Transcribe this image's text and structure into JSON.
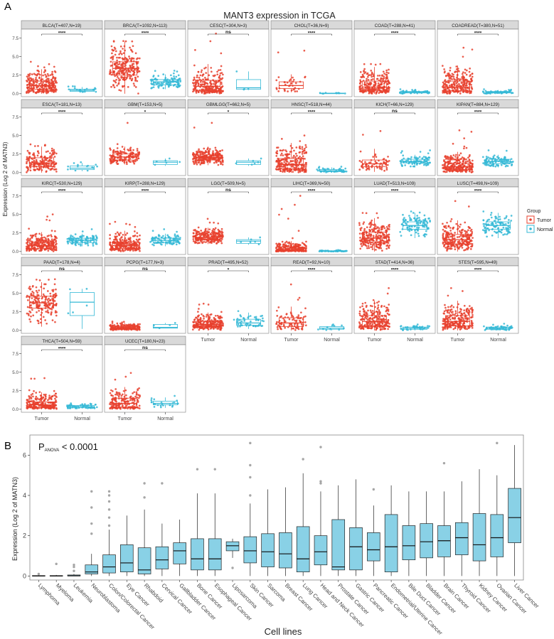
{
  "chart_data": [
    {
      "type": "boxplot",
      "panel_label": "A",
      "title": "MANT3 expression in TCGA",
      "ylabel": "Expression (Log 2 of MATN3)",
      "ylim": [
        -0.4,
        8.7
      ],
      "yticks": [
        "0.0",
        "2.5",
        "5.0",
        "7.5"
      ],
      "groups": [
        "Tumor",
        "Normal"
      ],
      "legend": {
        "title": "Group",
        "items": [
          "Tumor",
          "Normal"
        ],
        "position": "right"
      },
      "colors": {
        "tumor": "#e8412e",
        "normal": "#35b9d6",
        "strip": "#d9d9d9",
        "panel_border": "#7f7f7f"
      },
      "panels": [
        {
          "label": "BLCA(T=407,N=19)",
          "sig": "****",
          "tumor": {
            "q1": 0.6,
            "med": 1.1,
            "q3": 1.7,
            "lo": 0.0,
            "hi": 3.3,
            "max": 4.3
          },
          "normal": {
            "q1": 0.3,
            "med": 0.45,
            "q3": 0.6,
            "lo": 0.1,
            "hi": 0.9,
            "max": 1.0
          }
        },
        {
          "label": "BRCA(T=1092,N=113)",
          "sig": "****",
          "tumor": {
            "q1": 2.5,
            "med": 3.4,
            "q3": 4.3,
            "lo": 0.0,
            "hi": 7.0,
            "max": 7.1
          },
          "normal": {
            "q1": 1.2,
            "med": 1.6,
            "q3": 1.9,
            "lo": 0.6,
            "hi": 2.6,
            "max": 3.1
          }
        },
        {
          "label": "CESC(T=304,N=3)",
          "sig": "ns",
          "tumor": {
            "q1": 0.4,
            "med": 1.0,
            "q3": 1.8,
            "lo": 0.0,
            "hi": 4.0,
            "max": 8.1
          },
          "normal": {
            "q1": 0.6,
            "med": 0.8,
            "q3": 1.9,
            "lo": 0.5,
            "hi": 3.0,
            "max": 3.0
          }
        },
        {
          "label": "CHOL(T=36,N=9)",
          "sig": "****",
          "tumor": {
            "q1": 0.7,
            "med": 1.1,
            "q3": 1.6,
            "lo": 0.2,
            "hi": 2.6,
            "max": 5.8
          },
          "normal": {
            "q1": 0.02,
            "med": 0.05,
            "q3": 0.08,
            "lo": 0.0,
            "hi": 0.12,
            "max": 0.12
          }
        },
        {
          "label": "COAD(T=288,N=41)",
          "sig": "****",
          "tumor": {
            "q1": 0.4,
            "med": 0.9,
            "q3": 1.7,
            "lo": 0.0,
            "hi": 3.6,
            "max": 4.0
          },
          "normal": {
            "q1": 0.1,
            "med": 0.2,
            "q3": 0.3,
            "lo": 0.0,
            "hi": 0.5,
            "max": 0.6
          }
        },
        {
          "label": "COADREAD(T=380,N=51)",
          "sig": "****",
          "tumor": {
            "q1": 0.4,
            "med": 0.9,
            "q3": 1.7,
            "lo": 0.0,
            "hi": 3.8,
            "max": 6.2
          },
          "normal": {
            "q1": 0.1,
            "med": 0.2,
            "q3": 0.3,
            "lo": 0.0,
            "hi": 0.5,
            "max": 0.6
          }
        },
        {
          "label": "ESCA(T=181,N=13)",
          "sig": "****",
          "tumor": {
            "q1": 0.8,
            "med": 1.3,
            "q3": 2.0,
            "lo": 0.0,
            "hi": 3.5,
            "max": 3.8
          },
          "normal": {
            "q1": 0.4,
            "med": 0.6,
            "q3": 0.9,
            "lo": 0.2,
            "hi": 1.3,
            "max": 1.4
          }
        },
        {
          "label": "GBM(T=153,N=5)",
          "sig": "*",
          "tumor": {
            "q1": 1.7,
            "med": 2.1,
            "q3": 2.5,
            "lo": 1.1,
            "hi": 3.5,
            "max": 6.7
          },
          "normal": {
            "q1": 1.1,
            "med": 1.4,
            "q3": 1.6,
            "lo": 0.9,
            "hi": 1.9,
            "max": 1.9
          }
        },
        {
          "label": "GBMLGG(T=662,N=5)",
          "sig": "*",
          "tumor": {
            "q1": 1.7,
            "med": 2.0,
            "q3": 2.4,
            "lo": 1.0,
            "hi": 3.5,
            "max": 6.7
          },
          "normal": {
            "q1": 1.1,
            "med": 1.4,
            "q3": 1.6,
            "lo": 0.9,
            "hi": 1.9,
            "max": 1.9
          }
        },
        {
          "label": "HNSC(T=518,N=44)",
          "sig": "****",
          "tumor": {
            "q1": 0.5,
            "med": 1.1,
            "q3": 1.9,
            "lo": 0.0,
            "hi": 4.0,
            "max": 5.0
          },
          "normal": {
            "q1": 0.15,
            "med": 0.25,
            "q3": 0.4,
            "lo": 0.0,
            "hi": 0.7,
            "max": 0.8
          }
        },
        {
          "label": "KICH(T=66,N=129)",
          "sig": "ns",
          "tumor": {
            "q1": 0.8,
            "med": 1.2,
            "q3": 1.7,
            "lo": 0.1,
            "hi": 3.2,
            "max": 5.6
          },
          "normal": {
            "q1": 1.3,
            "med": 1.5,
            "q3": 1.8,
            "lo": 0.7,
            "hi": 2.4,
            "max": 3.0
          }
        },
        {
          "label": "KIPAN(T=884,N=129)",
          "sig": "****",
          "tumor": {
            "q1": 0.4,
            "med": 0.8,
            "q3": 1.3,
            "lo": 0.0,
            "hi": 2.8,
            "max": 5.7
          },
          "normal": {
            "q1": 1.2,
            "med": 1.5,
            "q3": 1.8,
            "lo": 0.7,
            "hi": 2.4,
            "max": 3.0
          }
        },
        {
          "label": "KIRC(T=530,N=129)",
          "sig": "****",
          "tumor": {
            "q1": 0.4,
            "med": 0.8,
            "q3": 1.3,
            "lo": 0.0,
            "hi": 2.6,
            "max": 5.0
          },
          "normal": {
            "q1": 1.2,
            "med": 1.5,
            "q3": 1.8,
            "lo": 0.7,
            "hi": 2.4,
            "max": 3.0
          }
        },
        {
          "label": "KIRP(T=288,N=129)",
          "sig": "****",
          "tumor": {
            "q1": 0.4,
            "med": 0.8,
            "q3": 1.3,
            "lo": 0.0,
            "hi": 2.8,
            "max": 4.0
          },
          "normal": {
            "q1": 1.2,
            "med": 1.5,
            "q3": 1.8,
            "lo": 0.7,
            "hi": 2.4,
            "max": 3.0
          }
        },
        {
          "label": "LGG(T=509,N=5)",
          "sig": "ns",
          "tumor": {
            "q1": 1.6,
            "med": 1.9,
            "q3": 2.3,
            "lo": 1.0,
            "hi": 3.2,
            "max": 4.4
          },
          "normal": {
            "q1": 1.1,
            "med": 1.4,
            "q3": 1.6,
            "lo": 0.9,
            "hi": 1.9,
            "max": 1.9
          }
        },
        {
          "label": "LIHC(T=369,N=50)",
          "sig": "****",
          "tumor": {
            "q1": 0.1,
            "med": 0.25,
            "q3": 0.6,
            "lo": 0.0,
            "hi": 1.4,
            "max": 7.5
          },
          "normal": {
            "q1": 0.03,
            "med": 0.06,
            "q3": 0.1,
            "lo": 0.0,
            "hi": 0.15,
            "max": 0.2
          }
        },
        {
          "label": "LUAD(T=513,N=109)",
          "sig": "****",
          "tumor": {
            "q1": 1.2,
            "med": 1.8,
            "q3": 2.6,
            "lo": 0.0,
            "hi": 4.5,
            "max": 5.2
          },
          "normal": {
            "q1": 3.0,
            "med": 3.5,
            "q3": 4.0,
            "lo": 1.8,
            "hi": 5.2,
            "max": 5.4
          }
        },
        {
          "label": "LUSC(T=498,N=109)",
          "sig": "****",
          "tumor": {
            "q1": 1.0,
            "med": 1.6,
            "q3": 2.3,
            "lo": 0.0,
            "hi": 4.2,
            "max": 6.8
          },
          "normal": {
            "q1": 3.0,
            "med": 3.5,
            "q3": 4.0,
            "lo": 1.8,
            "hi": 5.2,
            "max": 5.4
          }
        },
        {
          "label": "PAAD(T=178,N=4)",
          "sig": "ns",
          "tumor": {
            "q1": 3.0,
            "med": 3.7,
            "q3": 4.6,
            "lo": 0.5,
            "hi": 6.5,
            "max": 6.9
          },
          "normal": {
            "q1": 2.0,
            "med": 3.8,
            "q3": 5.1,
            "lo": 0.2,
            "hi": 5.6,
            "max": 5.6
          }
        },
        {
          "label": "PCPG(T=177,N=3)",
          "sig": "ns",
          "tumor": {
            "q1": 0.2,
            "med": 0.35,
            "q3": 0.55,
            "lo": 0.0,
            "hi": 1.0,
            "max": 1.2
          },
          "normal": {
            "q1": 0.3,
            "med": 0.4,
            "q3": 0.8,
            "lo": 0.3,
            "hi": 1.0,
            "max": 1.0
          }
        },
        {
          "label": "PRAD(T=495,N=52)",
          "sig": "*",
          "tumor": {
            "q1": 0.5,
            "med": 0.8,
            "q3": 1.2,
            "lo": 0.0,
            "hi": 2.4,
            "max": 3.6
          },
          "normal": {
            "q1": 0.7,
            "med": 1.0,
            "q3": 1.5,
            "lo": 0.2,
            "hi": 2.4,
            "max": 2.6
          }
        },
        {
          "label": "READ(T=92,N=10)",
          "sig": "****",
          "tumor": {
            "q1": 0.5,
            "med": 1.0,
            "q3": 1.7,
            "lo": 0.0,
            "hi": 3.2,
            "max": 6.2
          },
          "normal": {
            "q1": 0.15,
            "med": 0.3,
            "q3": 0.5,
            "lo": 0.0,
            "hi": 0.8,
            "max": 0.8
          }
        },
        {
          "label": "STAD(T=414,N=36)",
          "sig": "****",
          "tumor": {
            "q1": 0.6,
            "med": 1.2,
            "q3": 2.0,
            "lo": 0.0,
            "hi": 4.0,
            "max": 5.7
          },
          "normal": {
            "q1": 0.15,
            "med": 0.3,
            "q3": 0.45,
            "lo": 0.0,
            "hi": 0.7,
            "max": 0.8
          }
        },
        {
          "label": "STES(T=595,N=49)",
          "sig": "****",
          "tumor": {
            "q1": 0.6,
            "med": 1.2,
            "q3": 2.0,
            "lo": 0.0,
            "hi": 4.0,
            "max": 5.7
          },
          "normal": {
            "q1": 0.15,
            "med": 0.3,
            "q3": 0.45,
            "lo": 0.0,
            "hi": 0.7,
            "max": 0.9
          }
        },
        {
          "label": "THCA(T=504,N=59)",
          "sig": "****",
          "tumor": {
            "q1": 0.3,
            "med": 0.6,
            "q3": 1.0,
            "lo": 0.0,
            "hi": 2.3,
            "max": 4.2
          },
          "normal": {
            "q1": 0.2,
            "med": 0.35,
            "q3": 0.5,
            "lo": 0.1,
            "hi": 0.8,
            "max": 0.8
          }
        },
        {
          "label": "UCEC(T=180,N=23)",
          "sig": "ns",
          "tumor": {
            "q1": 0.3,
            "med": 0.8,
            "q3": 1.5,
            "lo": 0.0,
            "hi": 3.0,
            "max": 4.9
          },
          "normal": {
            "q1": 0.6,
            "med": 0.8,
            "q3": 1.1,
            "lo": 0.2,
            "hi": 1.6,
            "max": 1.8
          }
        }
      ]
    },
    {
      "type": "boxplot",
      "panel_label": "B",
      "annotation_main": "P",
      "annotation_sub": "ANOVA",
      "annotation_rest": " < 0.0001",
      "ylabel": "Expression (Log 2 of MATN3)",
      "xlabel": "Cell lines",
      "ylim": [
        -0.2,
        7.0
      ],
      "yticks": [
        "0",
        "2",
        "4",
        "6"
      ],
      "colors": {
        "box": "#89d1e6",
        "outlier": "#a6a6a6"
      },
      "categories": [
        {
          "name": "Lymphoma",
          "q1": 0.0,
          "med": 0.0,
          "q3": 0.02,
          "lo": 0.0,
          "hi": 0.05,
          "out": [
            0.1
          ]
        },
        {
          "name": "Myeloma",
          "q1": 0.0,
          "med": 0.0,
          "q3": 0.02,
          "lo": 0.0,
          "hi": 0.05,
          "out": [
            0.6
          ]
        },
        {
          "name": "Leukemia",
          "q1": 0.0,
          "med": 0.01,
          "q3": 0.05,
          "lo": 0.0,
          "hi": 0.1,
          "out": [
            0.25,
            0.45,
            0.55
          ]
        },
        {
          "name": "Neuroblastoma",
          "q1": 0.1,
          "med": 0.2,
          "q3": 0.55,
          "lo": 0.0,
          "hi": 1.1,
          "out": [
            2.1,
            2.6,
            3.4,
            4.2
          ]
        },
        {
          "name": "Colon/Colorectal Cancer",
          "q1": 0.15,
          "med": 0.45,
          "q3": 1.05,
          "lo": 0.0,
          "hi": 2.3,
          "out": [
            2.5,
            2.9,
            3.3,
            3.7,
            4.0,
            4.2
          ]
        },
        {
          "name": "Eye Cancer",
          "q1": 0.2,
          "med": 0.65,
          "q3": 1.55,
          "lo": 0.0,
          "hi": 3.0,
          "out": []
        },
        {
          "name": "Rhabdoid",
          "q1": 0.1,
          "med": 0.3,
          "q3": 1.4,
          "lo": 0.0,
          "hi": 3.3,
          "out": [
            3.9,
            4.6
          ]
        },
        {
          "name": "Cervical Cancer",
          "q1": 0.35,
          "med": 0.8,
          "q3": 1.45,
          "lo": 0.0,
          "hi": 2.6,
          "out": [
            4.6
          ]
        },
        {
          "name": "Gallbladder Cancer",
          "q1": 0.6,
          "med": 1.25,
          "q3": 1.65,
          "lo": 0.0,
          "hi": 2.8,
          "out": []
        },
        {
          "name": "Bone Cancer",
          "q1": 0.3,
          "med": 0.85,
          "q3": 1.85,
          "lo": 0.0,
          "hi": 4.1,
          "out": [
            5.3
          ]
        },
        {
          "name": "Esophageal Cancer",
          "q1": 0.3,
          "med": 0.85,
          "q3": 1.85,
          "lo": 0.0,
          "hi": 4.1,
          "out": [
            5.3
          ]
        },
        {
          "name": "Liposarcoma",
          "q1": 1.25,
          "med": 1.5,
          "q3": 1.7,
          "lo": 0.9,
          "hi": 1.85,
          "out": [
            0.4
          ]
        },
        {
          "name": "Skin Cancer",
          "q1": 0.65,
          "med": 1.25,
          "q3": 1.95,
          "lo": 0.0,
          "hi": 3.6,
          "out": [
            4.0,
            4.9,
            5.5,
            6.6
          ]
        },
        {
          "name": "Sarcoma",
          "q1": 0.45,
          "med": 1.2,
          "q3": 2.1,
          "lo": 0.0,
          "hi": 4.3,
          "out": []
        },
        {
          "name": "Breast Cancer",
          "q1": 0.4,
          "med": 1.1,
          "q3": 2.15,
          "lo": 0.0,
          "hi": 4.4,
          "out": []
        },
        {
          "name": "Lung Cancer",
          "q1": 0.2,
          "med": 0.85,
          "q3": 2.45,
          "lo": 0.0,
          "hi": 5.1,
          "out": [
            5.8
          ]
        },
        {
          "name": "Head and Neck Cancer",
          "q1": 0.55,
          "med": 1.2,
          "q3": 2.0,
          "lo": 0.0,
          "hi": 4.2,
          "out": [
            4.6,
            4.7,
            6.4
          ]
        },
        {
          "name": "Prostate Cancer",
          "q1": 0.3,
          "med": 0.45,
          "q3": 2.8,
          "lo": 0.0,
          "hi": 4.5,
          "out": []
        },
        {
          "name": "Gastric Cancer",
          "q1": 0.3,
          "med": 1.45,
          "q3": 2.4,
          "lo": 0.0,
          "hi": 4.8,
          "out": []
        },
        {
          "name": "Pancreatic Cancer",
          "q1": 0.75,
          "med": 1.3,
          "q3": 2.15,
          "lo": 0.0,
          "hi": 3.5,
          "out": [
            4.3
          ]
        },
        {
          "name": "Endometrial/Uterine Cancer",
          "q1": 0.2,
          "med": 1.45,
          "q3": 3.05,
          "lo": 0.0,
          "hi": 4.5,
          "out": []
        },
        {
          "name": "Bile Duct Cancer",
          "q1": 0.8,
          "med": 1.5,
          "q3": 2.5,
          "lo": 0.0,
          "hi": 4.2,
          "out": []
        },
        {
          "name": "Bladder Cancer",
          "q1": 0.9,
          "med": 1.7,
          "q3": 2.6,
          "lo": 0.0,
          "hi": 4.2,
          "out": []
        },
        {
          "name": "Brain Cancer",
          "q1": 0.95,
          "med": 1.75,
          "q3": 2.5,
          "lo": 0.0,
          "hi": 4.2,
          "out": [
            5.6
          ]
        },
        {
          "name": "Thyroid Cancer",
          "q1": 1.05,
          "med": 1.9,
          "q3": 2.65,
          "lo": 0.0,
          "hi": 4.7,
          "out": []
        },
        {
          "name": "Kidney Cancer",
          "q1": 0.75,
          "med": 1.55,
          "q3": 3.1,
          "lo": 0.0,
          "hi": 5.3,
          "out": []
        },
        {
          "name": "Ovarian Cancer",
          "q1": 0.95,
          "med": 1.9,
          "q3": 3.05,
          "lo": 0.0,
          "hi": 5.0,
          "out": [
            6.6
          ]
        },
        {
          "name": "Liver Cancer",
          "q1": 1.65,
          "med": 2.9,
          "q3": 4.35,
          "lo": 0.0,
          "hi": 6.5,
          "out": []
        }
      ]
    }
  ]
}
